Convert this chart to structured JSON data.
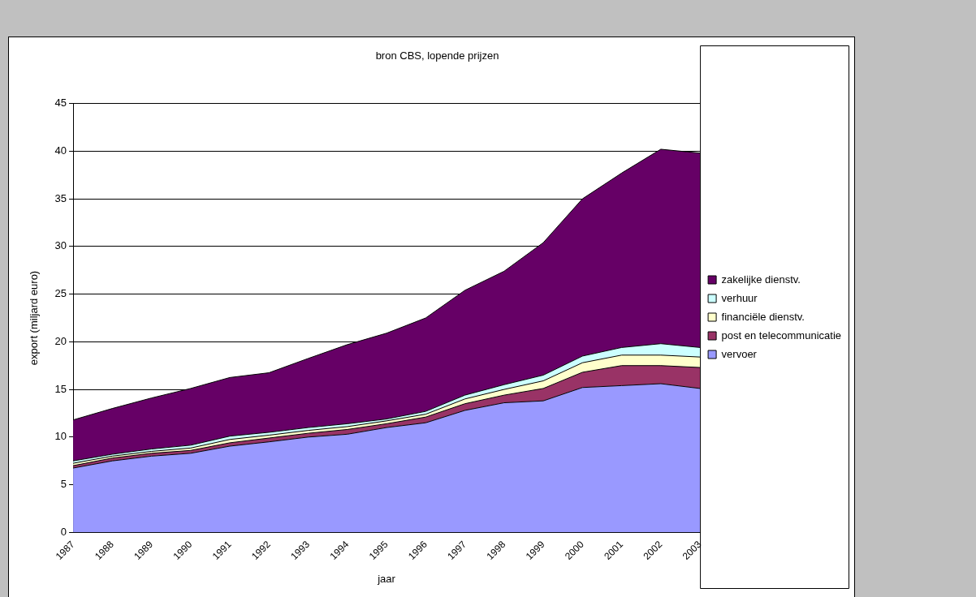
{
  "chart_data": {
    "type": "area",
    "title": "bron CBS, lopende prijzen",
    "xlabel": "jaar",
    "ylabel": "export (miljard euro)",
    "stacked": true,
    "categories": [
      "1987",
      "1988",
      "1989",
      "1990",
      "1991",
      "1992",
      "1993",
      "1994",
      "1995",
      "1996",
      "1997",
      "1998",
      "1999",
      "2000",
      "2001",
      "2002",
      "2003"
    ],
    "series": [
      {
        "name": "vervoer",
        "color": "#9999ff",
        "values": [
          6.75,
          7.5,
          8.0,
          8.3,
          9.05,
          9.5,
          10.0,
          10.3,
          11.0,
          11.5,
          12.8,
          13.6,
          13.8,
          15.2,
          15.4,
          15.6,
          15.1
        ]
      },
      {
        "name": "post en telecommunicatie",
        "color": "#993366",
        "values": [
          0.25,
          0.3,
          0.3,
          0.3,
          0.35,
          0.4,
          0.4,
          0.5,
          0.4,
          0.6,
          0.7,
          0.8,
          1.3,
          1.6,
          2.1,
          1.9,
          2.2
        ]
      },
      {
        "name": "financiële dienstv.",
        "color": "#ffffcc",
        "values": [
          0.25,
          0.2,
          0.2,
          0.25,
          0.35,
          0.3,
          0.3,
          0.3,
          0.3,
          0.3,
          0.5,
          0.6,
          0.8,
          1.0,
          1.1,
          1.1,
          1.1
        ]
      },
      {
        "name": "verhuur",
        "color": "#ccffff",
        "values": [
          0.25,
          0.2,
          0.25,
          0.3,
          0.35,
          0.3,
          0.3,
          0.3,
          0.2,
          0.3,
          0.4,
          0.5,
          0.6,
          0.7,
          0.8,
          1.2,
          1.0
        ]
      },
      {
        "name": "zakelijke dienstv.",
        "color": "#660066",
        "values": [
          4.3,
          4.8,
          5.35,
          5.95,
          6.15,
          6.25,
          7.25,
          8.3,
          9.0,
          9.8,
          11.0,
          11.9,
          13.9,
          16.5,
          18.3,
          20.4,
          20.4
        ]
      }
    ],
    "ylim": [
      0,
      45
    ],
    "yticks": [
      0,
      5,
      10,
      15,
      20,
      25,
      30,
      35,
      40,
      45
    ],
    "grid": "y",
    "legend": "right"
  }
}
